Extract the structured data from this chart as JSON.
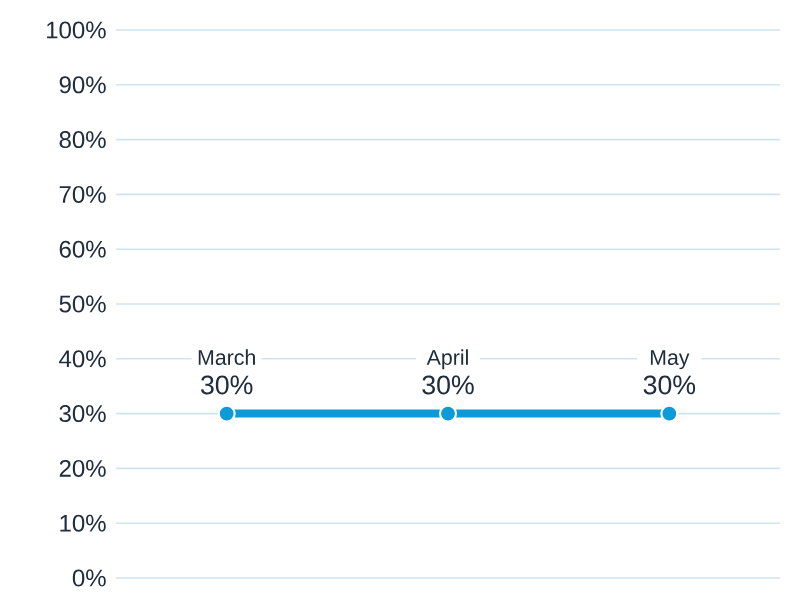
{
  "chart_data": {
    "type": "line",
    "categories": [
      "March",
      "April",
      "May"
    ],
    "values": [
      30,
      30,
      30
    ],
    "value_labels": [
      "30%",
      "30%",
      "30%"
    ],
    "color": "#0e9ad8",
    "ylim": [
      0,
      100
    ],
    "yticks": [
      {
        "value": 0,
        "label": "0%"
      },
      {
        "value": 10,
        "label": "10%"
      },
      {
        "value": 20,
        "label": "20%"
      },
      {
        "value": 30,
        "label": "30%"
      },
      {
        "value": 40,
        "label": "40%"
      },
      {
        "value": 50,
        "label": "50%"
      },
      {
        "value": 60,
        "label": "60%"
      },
      {
        "value": 70,
        "label": "70%"
      },
      {
        "value": 80,
        "label": "80%"
      },
      {
        "value": 90,
        "label": "90%"
      },
      {
        "value": 100,
        "label": "100%"
      }
    ],
    "grid": "y",
    "tick_labels": "y",
    "marker": "circle",
    "line_style": "solid"
  }
}
